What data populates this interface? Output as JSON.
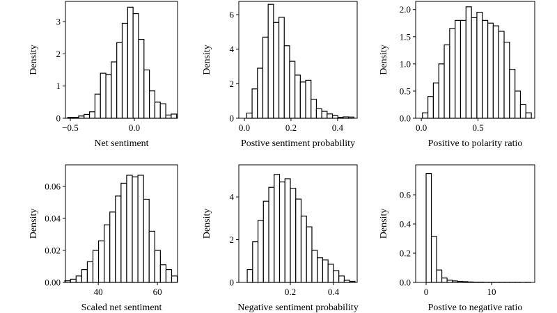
{
  "chart_data": [
    {
      "type": "histogram",
      "xlabel": "Net sentiment",
      "ylabel": "Density",
      "bins": [
        -0.52,
        -0.4775,
        -0.435,
        -0.3925,
        -0.35,
        -0.3075,
        -0.265,
        -0.2225,
        -0.18,
        -0.1375,
        -0.095,
        -0.0525,
        -0.01,
        0.0325,
        0.075,
        0.1175,
        0.16,
        0.2025,
        0.245,
        0.2875,
        0.33
      ],
      "counts": [
        0.03,
        0.03,
        0.07,
        0.12,
        0.2,
        0.75,
        1.4,
        1.35,
        1.75,
        2.35,
        2.95,
        3.45,
        3.25,
        2.45,
        1.5,
        0.85,
        0.5,
        0.45,
        0.1,
        0.13
      ],
      "xlim": [
        -0.538,
        0.337
      ],
      "ylim": [
        0,
        3.63
      ],
      "xticks": [
        {
          "value": -0.5,
          "label": "−0.5"
        },
        {
          "value": 0,
          "label": "0.0"
        }
      ],
      "yticks": [
        0,
        1,
        2,
        3
      ]
    },
    {
      "type": "histogram",
      "xlabel": "Postive sentiment probability",
      "ylabel": "Density",
      "bins": [
        0.01,
        0.033,
        0.056,
        0.079,
        0.102,
        0.125,
        0.148,
        0.171,
        0.194,
        0.217,
        0.24,
        0.263,
        0.286,
        0.309,
        0.332,
        0.355,
        0.378,
        0.401,
        0.424,
        0.447,
        0.47
      ],
      "counts": [
        0.3,
        1.7,
        2.9,
        4.7,
        6.6,
        5.55,
        5.85,
        4.2,
        3.3,
        2.5,
        2.1,
        2.2,
        1.1,
        0.55,
        0.4,
        0.25,
        0.15,
        0.05,
        0.08,
        0.07
      ],
      "xlim": [
        -0.024,
        0.484
      ],
      "ylim": [
        0,
        6.77
      ],
      "xticks": [
        {
          "value": 0,
          "label": "0.0"
        },
        0.2,
        0.4
      ],
      "yticks": [
        0,
        2,
        4,
        6
      ]
    },
    {
      "type": "histogram",
      "xlabel": "Positive to polarity ratio",
      "ylabel": "Density",
      "bins": [
        0.01,
        0.058,
        0.106,
        0.154,
        0.202,
        0.25,
        0.298,
        0.346,
        0.394,
        0.442,
        0.49,
        0.538,
        0.586,
        0.634,
        0.682,
        0.73,
        0.778,
        0.826,
        0.874,
        0.922,
        0.97
      ],
      "counts": [
        0.1,
        0.4,
        0.65,
        1.0,
        1.35,
        1.65,
        1.8,
        1.8,
        2.05,
        1.85,
        1.95,
        1.8,
        1.75,
        1.7,
        1.6,
        1.4,
        0.9,
        0.5,
        0.25,
        0.1
      ],
      "xlim": [
        -0.05,
        1.0
      ],
      "ylim": [
        0,
        2.15
      ],
      "xticks": [
        {
          "value": 0,
          "label": "0.0"
        },
        0.5
      ],
      "yticks": [
        {
          "value": 0,
          "label": "0.0"
        },
        0.5,
        {
          "value": 1,
          "label": "1.0"
        },
        1.5,
        {
          "value": 2,
          "label": "2.0"
        }
      ]
    },
    {
      "type": "histogram",
      "xlabel": "Scaled net sentiment",
      "ylabel": "Density",
      "bins": [
        28.7,
        30.6,
        32.5,
        34.4,
        36.3,
        38.2,
        40.1,
        42.0,
        43.9,
        45.8,
        47.7,
        49.6,
        51.5,
        53.4,
        55.3,
        57.2,
        59.1,
        61.0,
        62.9,
        64.8,
        66.7
      ],
      "counts": [
        0.001,
        0.002,
        0.004,
        0.008,
        0.013,
        0.02,
        0.026,
        0.036,
        0.044,
        0.054,
        0.062,
        0.067,
        0.066,
        0.067,
        0.052,
        0.032,
        0.02,
        0.011,
        0.008,
        0.004
      ],
      "xlim": [
        28.9,
        66.8
      ],
      "ylim": [
        0,
        0.0735
      ],
      "xticks": [
        40,
        60
      ],
      "yticks": [
        {
          "value": 0,
          "label": "0.00"
        },
        {
          "value": 0.02,
          "label": "0.02"
        },
        {
          "value": 0.04,
          "label": "0.04"
        },
        {
          "value": 0.06,
          "label": "0.06"
        }
      ]
    },
    {
      "type": "histogram",
      "xlabel": "Negative sentiment probability",
      "ylabel": "Density",
      "bins": [
        0.0,
        0.025,
        0.05,
        0.075,
        0.1,
        0.125,
        0.15,
        0.175,
        0.2,
        0.225,
        0.25,
        0.275,
        0.3,
        0.325,
        0.35,
        0.375,
        0.4,
        0.425,
        0.45,
        0.475,
        0.5
      ],
      "counts": [
        0.6,
        1.9,
        2.9,
        3.8,
        4.45,
        5.05,
        4.7,
        4.85,
        4.4,
        3.9,
        3.1,
        2.6,
        1.5,
        1.15,
        1.05,
        0.85,
        0.55,
        0.3,
        0.1,
        0.05
      ],
      "xlim": [
        -0.039,
        0.51
      ],
      "ylim": [
        0,
        5.5
      ],
      "xticks": [
        0.2,
        0.4
      ],
      "yticks": [
        0,
        2,
        4
      ]
    },
    {
      "type": "histogram",
      "xlabel": "Postive to negative ratio",
      "ylabel": "Density",
      "bins": [
        0,
        0.8,
        1.6,
        2.4,
        3.2,
        4.0,
        4.8,
        5.6,
        6.4,
        7.2,
        8.0,
        8.8,
        9.6,
        10.4,
        11.2,
        12.0,
        12.8,
        13.6,
        14.4,
        15.2,
        16.0
      ],
      "counts": [
        0.745,
        0.315,
        0.085,
        0.03,
        0.015,
        0.01,
        0.007,
        0.005,
        0.003,
        0.002,
        0.002,
        0.001,
        0.001,
        0.001,
        0.001,
        0.001,
        0.001,
        0.001,
        0.0005,
        0.001
      ],
      "xlim": [
        -1.6,
        16.6
      ],
      "ylim": [
        0,
        0.805
      ],
      "xticks": [
        0,
        10
      ],
      "yticks": [
        {
          "value": 0,
          "label": "0.0"
        },
        0.2,
        0.4,
        0.6
      ]
    }
  ]
}
